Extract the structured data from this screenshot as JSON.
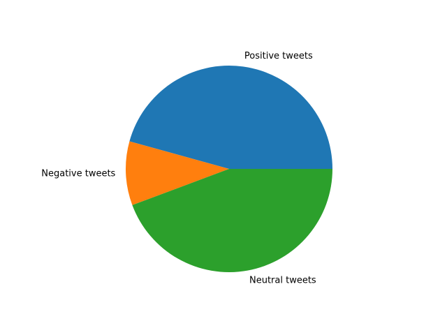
{
  "chart_data": {
    "type": "pie",
    "categories": [
      "Positive tweets",
      "Negative tweets",
      "Neutral tweets"
    ],
    "values": [
      45.7,
      10.0,
      44.3
    ],
    "colors": [
      "#1f77b4",
      "#ff7f0e",
      "#2ca02c"
    ],
    "start_angle_deg": 0,
    "direction": "counterclockwise",
    "legend": "none",
    "title": ""
  }
}
